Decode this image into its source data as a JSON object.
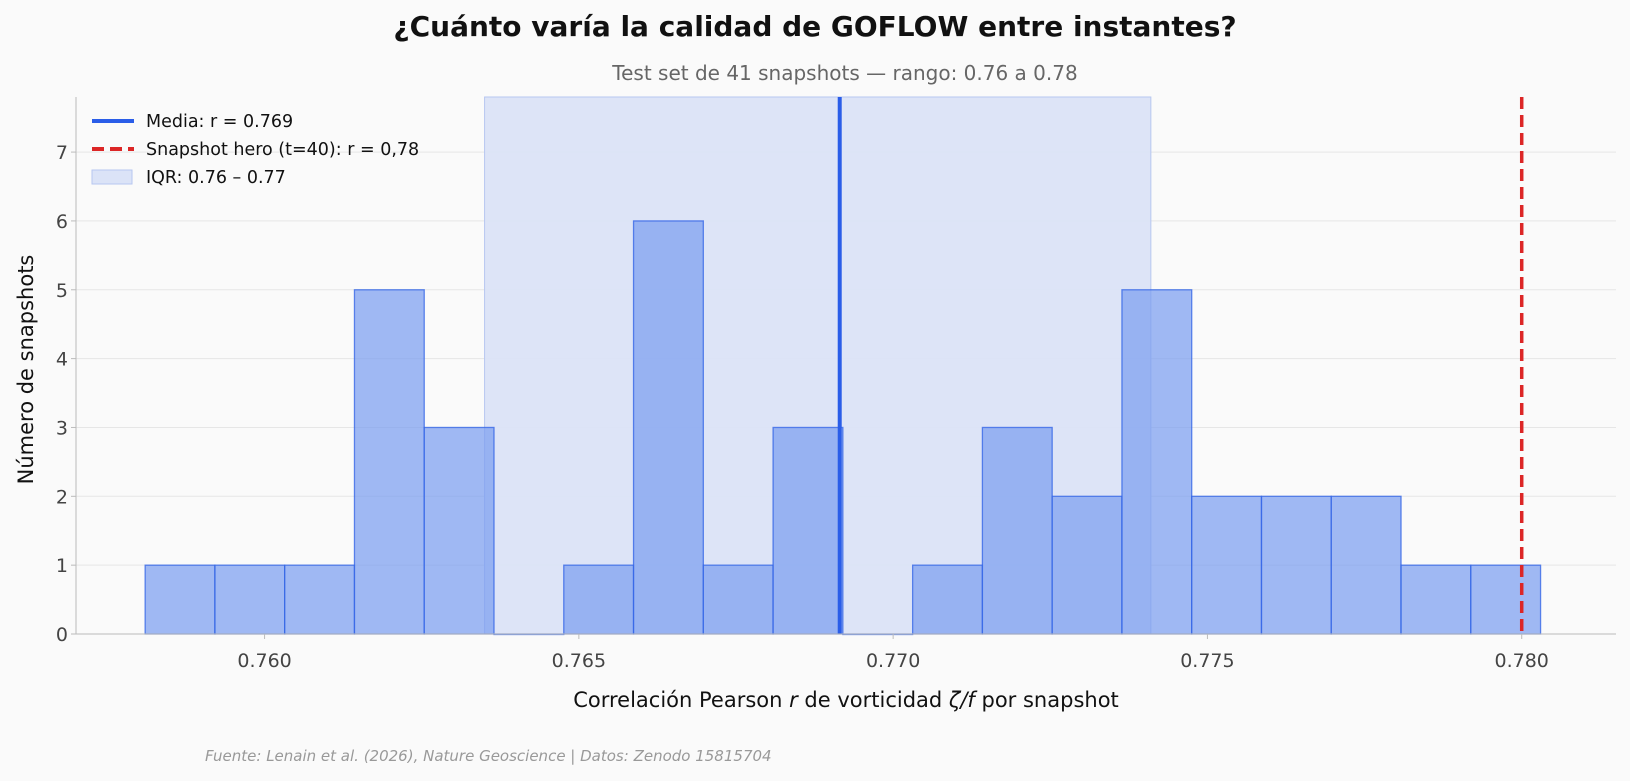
{
  "chart_data": {
    "type": "histogram",
    "title": "¿Cuánto varía la calidad de GOFLOW entre instantes?",
    "subtitle": "Test set de 41 snapshots — rango: 0.76 a 0.78",
    "xlabel_parts": [
      "Correlación Pearson ",
      "r",
      " de vorticidad ",
      "ζ/f",
      " por snapshot"
    ],
    "ylabel": "Número de snapshots",
    "xlim": [
      0.757,
      0.7815
    ],
    "ylim": [
      0,
      7.8
    ],
    "xticks": [
      0.76,
      0.765,
      0.77,
      0.775,
      0.78
    ],
    "xtick_labels": [
      "0.760",
      "0.765",
      "0.770",
      "0.775",
      "0.780"
    ],
    "yticks": [
      0,
      1,
      2,
      3,
      4,
      5,
      6,
      7
    ],
    "ytick_labels": [
      "0",
      "1",
      "2",
      "3",
      "4",
      "5",
      "6",
      "7"
    ],
    "bin_start": 0.7581,
    "bin_width": 0.00111,
    "counts": [
      1,
      1,
      1,
      5,
      3,
      0,
      1,
      6,
      1,
      3,
      0,
      1,
      3,
      2,
      5,
      2,
      2,
      2,
      1,
      1
    ],
    "mean": 0.76915,
    "hero": 0.78,
    "iqr": [
      0.7635,
      0.7741
    ],
    "grid": true,
    "legend_position": "top-left",
    "legend": [
      {
        "label": "Media: r = 0.769",
        "kind": "solid-line"
      },
      {
        "label": "Snapshot hero (t=40): r = 0,78",
        "kind": "dashed-line"
      },
      {
        "label": "IQR: 0.76 – 0.77",
        "kind": "patch"
      }
    ],
    "colors": {
      "bar_fill": "#7b9ef0",
      "bar_stroke": "#2f62e6",
      "mean_line": "#2a5de8",
      "hero_line": "#dc2626",
      "iqr_fill": "#dbe3f7",
      "iqr_stroke": "#b7c7f0",
      "grid": "#e6e6e6"
    }
  },
  "source": "Fuente: Lenain et al. (2026), Nature Geoscience | Datos: Zenodo 15815704"
}
